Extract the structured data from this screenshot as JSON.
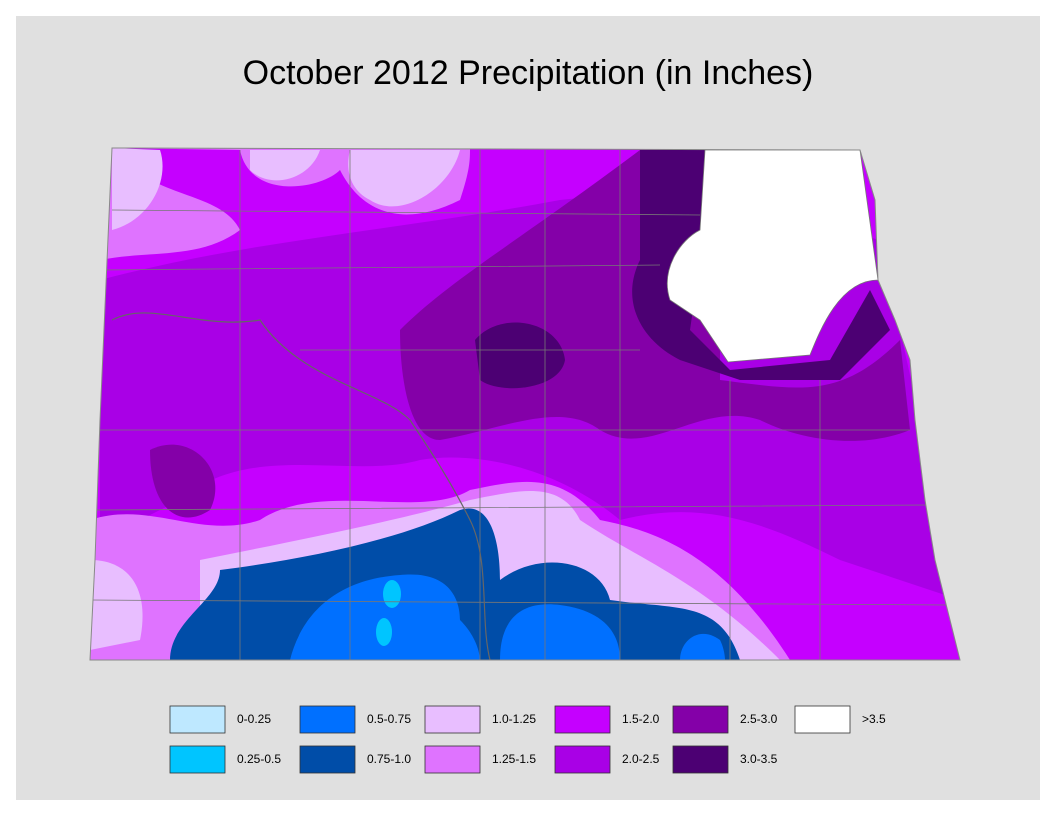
{
  "title": "October 2012 Precipitation (in Inches)",
  "legend": {
    "items": [
      {
        "label": "0-0.25",
        "color": "#bee8ff"
      },
      {
        "label": "0.25-0.5",
        "color": "#00c5ff"
      },
      {
        "label": "0.5-0.75",
        "color": "#0070ff"
      },
      {
        "label": "0.75-1.0",
        "color": "#004da8"
      },
      {
        "label": "1.0-1.25",
        "color": "#e8beff"
      },
      {
        "label": "1.25-1.5",
        "color": "#df73ff"
      },
      {
        "label": "1.5-2.0",
        "color": "#c500ff"
      },
      {
        "label": "2.0-2.5",
        "color": "#a900e6"
      },
      {
        "label": "2.5-3.0",
        "color": "#8400a8"
      },
      {
        "label": "3.0-3.5",
        "color": "#4c0073"
      },
      {
        "label": ">3.5",
        "color": "#ffffff"
      }
    ]
  }
}
